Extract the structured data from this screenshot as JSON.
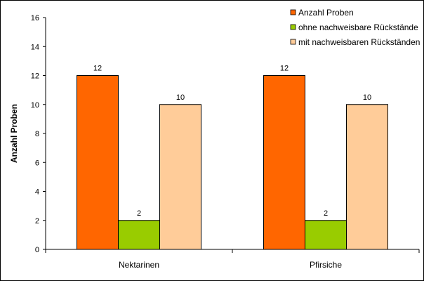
{
  "chart_data": {
    "type": "bar",
    "title": "",
    "xlabel": "",
    "ylabel": "Anzahl Proben",
    "ylim": [
      0,
      16
    ],
    "yticks": [
      0,
      2,
      4,
      6,
      8,
      10,
      12,
      14,
      16
    ],
    "categories": [
      "Nektarinen",
      "Pfirsiche"
    ],
    "series": [
      {
        "name": "Anzahl Proben",
        "values": [
          12,
          12
        ],
        "color": "#FF6600"
      },
      {
        "name": "ohne nachweisbare Rückstände",
        "values": [
          2,
          2
        ],
        "color": "#99CC00"
      },
      {
        "name": "mit nachweisbaren Rückständen",
        "values": [
          10,
          10
        ],
        "color": "#FFCC99"
      }
    ],
    "legend_position": "top-right",
    "grid": false
  }
}
